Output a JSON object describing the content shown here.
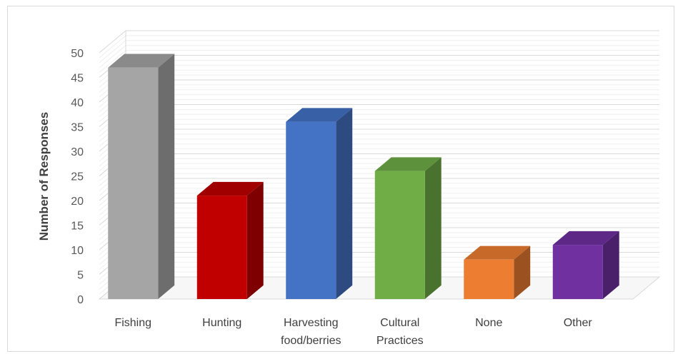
{
  "chart_data": {
    "type": "bar",
    "style": "3d-column",
    "title": "",
    "xlabel": "",
    "ylabel": "Number of Responses",
    "ylim": [
      0,
      50
    ],
    "yticks": [
      0,
      5,
      10,
      15,
      20,
      25,
      30,
      35,
      40,
      45,
      50
    ],
    "grid": true,
    "legend": "none",
    "categories": [
      [
        "Fishing"
      ],
      [
        "Hunting"
      ],
      [
        "Harvesting",
        "food/berries"
      ],
      [
        "Cultural",
        "Practices"
      ],
      [
        "None"
      ],
      [
        "Other"
      ]
    ],
    "values": [
      47,
      21,
      36,
      26,
      8,
      11
    ],
    "colors": {
      "front": [
        "#a5a5a5",
        "#c00000",
        "#4472c4",
        "#70ad47",
        "#ed7d31",
        "#7030a0"
      ],
      "side": [
        "#6d6d6d",
        "#7f0000",
        "#2d4b81",
        "#4a722f",
        "#9c5220",
        "#4a206a"
      ],
      "top": [
        "#8a8a8a",
        "#a00000",
        "#3860a7",
        "#5e913c",
        "#c76929",
        "#5e2887"
      ]
    },
    "gridline_color": "#d9d9d9"
  }
}
